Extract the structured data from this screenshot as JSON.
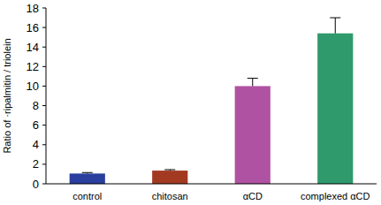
{
  "chart_data": {
    "type": "bar",
    "y_label": "Ratio of ·ripalmitin / triolein",
    "categories": [
      "control",
      "chitosan",
      "αCD",
      "complexed αCD"
    ],
    "values": [
      1.05,
      1.35,
      10.0,
      15.4
    ],
    "errors": [
      0.1,
      0.1,
      0.8,
      1.6
    ],
    "colors": [
      "#2a3f9e",
      "#a23a22",
      "#b052a2",
      "#2f9a6c"
    ],
    "ylim": [
      0,
      18
    ],
    "yticks": [
      0,
      2,
      4,
      6,
      8,
      10,
      12,
      14,
      16,
      18
    ],
    "grid": false
  }
}
